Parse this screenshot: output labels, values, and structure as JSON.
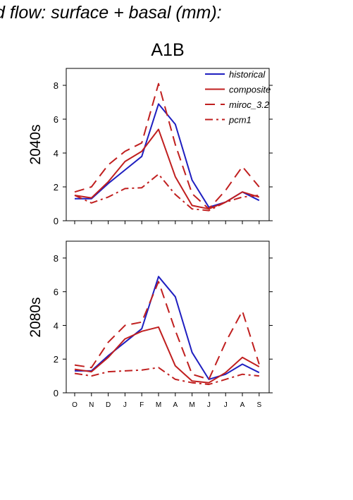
{
  "figure": {
    "title": "d flow: surface + basal (mm):",
    "scenario": "A1B"
  },
  "chart_data": [
    {
      "type": "line",
      "row_label": "2040s",
      "title": "A1B",
      "xlabel": "",
      "ylabel": "2040s",
      "categories": [
        "O",
        "N",
        "D",
        "J",
        "F",
        "M",
        "A",
        "M",
        "J",
        "J",
        "A",
        "S"
      ],
      "ylim": [
        0,
        9
      ],
      "yticks": [
        "0",
        "2",
        "4",
        "6",
        "8"
      ],
      "grid": false,
      "legend_position": "top-right",
      "series": [
        {
          "name": "historical",
          "color": "#1f1fc0",
          "dash": "solid",
          "values": [
            1.3,
            1.3,
            2.2,
            3.0,
            3.8,
            6.9,
            5.7,
            2.4,
            0.8,
            1.1,
            1.7,
            1.2
          ]
        },
        {
          "name": "composite",
          "color": "#c01f1f",
          "dash": "solid",
          "values": [
            1.5,
            1.35,
            2.3,
            3.5,
            4.1,
            5.4,
            2.6,
            0.9,
            0.7,
            1.1,
            1.7,
            1.4
          ]
        },
        {
          "name": "miroc_3.2",
          "color": "#c01f1f",
          "dash": "dash",
          "values": [
            1.7,
            2.0,
            3.3,
            4.1,
            4.6,
            8.1,
            4.5,
            1.6,
            0.7,
            1.8,
            3.2,
            2.0
          ]
        },
        {
          "name": "pcm1",
          "color": "#c01f1f",
          "dash": "dashdot",
          "values": [
            1.5,
            1.05,
            1.4,
            1.9,
            1.95,
            2.75,
            1.55,
            0.7,
            0.6,
            1.1,
            1.4,
            1.5
          ]
        }
      ]
    },
    {
      "type": "line",
      "row_label": "2080s",
      "title": "",
      "xlabel": "",
      "ylabel": "2080s",
      "categories": [
        "O",
        "N",
        "D",
        "J",
        "F",
        "M",
        "A",
        "M",
        "J",
        "J",
        "A",
        "S"
      ],
      "ylim": [
        0,
        9
      ],
      "yticks": [
        "0",
        "2",
        "4",
        "6",
        "8"
      ],
      "grid": false,
      "series": [
        {
          "name": "historical",
          "color": "#1f1fc0",
          "dash": "solid",
          "values": [
            1.3,
            1.3,
            2.2,
            3.0,
            3.8,
            6.9,
            5.7,
            2.4,
            0.8,
            1.1,
            1.7,
            1.2
          ]
        },
        {
          "name": "composite",
          "color": "#c01f1f",
          "dash": "solid",
          "values": [
            1.4,
            1.25,
            2.1,
            3.2,
            3.65,
            3.9,
            1.6,
            0.7,
            0.6,
            1.2,
            2.1,
            1.55
          ]
        },
        {
          "name": "miroc_3.2",
          "color": "#c01f1f",
          "dash": "dash",
          "values": [
            1.65,
            1.5,
            3.0,
            4.0,
            4.2,
            6.6,
            3.7,
            1.1,
            0.8,
            3.0,
            4.85,
            1.7
          ]
        },
        {
          "name": "pcm1",
          "color": "#c01f1f",
          "dash": "dashdot",
          "values": [
            1.15,
            1.0,
            1.25,
            1.3,
            1.35,
            1.5,
            0.8,
            0.6,
            0.5,
            0.8,
            1.1,
            1.0
          ]
        }
      ]
    }
  ]
}
